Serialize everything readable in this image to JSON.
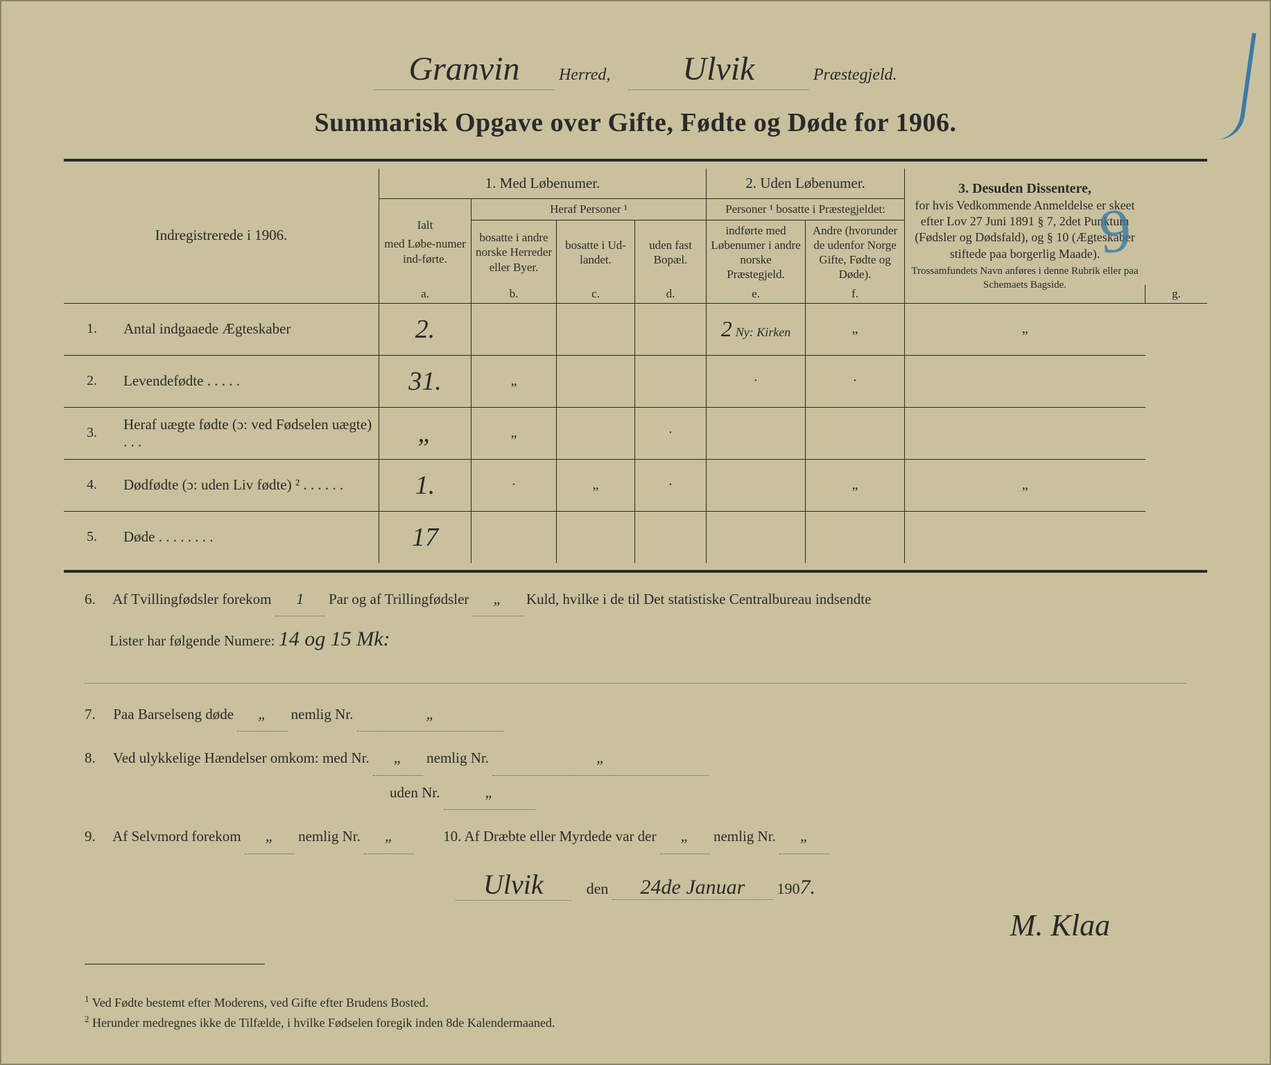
{
  "header": {
    "herred_value": "Granvin",
    "herred_label": "Herred,",
    "praestegjeld_value": "Ulvik",
    "praestegjeld_label": "Præstegjeld."
  },
  "title": "Summarisk Opgave over Gifte, Fødte og Døde for 1906.",
  "table": {
    "left_header": "Indregistrerede i 1906.",
    "section1": "1.  Med  Løbenumer.",
    "section2": "2. Uden Løbenumer.",
    "section3_title": "3.  Desuden  Dissentere,",
    "section3_body": "for hvis Vedkommende Anmeldelse er skeet efter Lov 27 Juni 1891 § 7, 2det Punktum (Fødsler og Dødsfald), og § 10 (Ægteskaber stiftede paa borgerlig Maade).",
    "section3_small": "Trossamfundets Navn anføres i denne Rubrik eller paa Schemaets Bagside.",
    "col_a_top": "Ialt",
    "col_a": "med Løbe-numer ind-førte.",
    "heraf": "Heraf Personer ¹",
    "col_b": "bosatte i andre norske Herreder eller Byer.",
    "col_c": "bosatte i Ud-landet.",
    "col_d": "uden fast Bopæl.",
    "personer2": "Personer ¹ bosatte i Præstegjeldet:",
    "col_e": "indførte med Løbenumer i andre norske Præstegjeld.",
    "col_f": "Andre (hvorunder de udenfor Norge Gifte, Fødte og Døde).",
    "letters": {
      "a": "a.",
      "b": "b.",
      "c": "c.",
      "d": "d.",
      "e": "e.",
      "f": "f.",
      "g": "g."
    },
    "rows": [
      {
        "n": "1.",
        "label": "Antal indgaaede Ægteskaber",
        "a": "2.",
        "b": "",
        "c": "",
        "d": "",
        "e": "2",
        "e_note": "Ny: Kirken",
        "f": "„",
        "g": "„"
      },
      {
        "n": "2.",
        "label": "Levendefødte   .   .   .   .   .",
        "a": "31.",
        "b": "„",
        "c": "",
        "d": "",
        "e": "·",
        "f": "·",
        "g": ""
      },
      {
        "n": "3.",
        "label": "Heraf uægte fødte (ɔ: ved Fødselen uægte)   .   .   .",
        "a": "„",
        "b": "„",
        "c": "",
        "d": "·",
        "e": "",
        "f": "",
        "g": ""
      },
      {
        "n": "4.",
        "label": "Dødfødte (ɔ: uden Liv fødte) ²   .   .   .   .   .   .",
        "a": "1.",
        "b": "·",
        "c": "„",
        "d": "·",
        "e": "",
        "f": "„",
        "g": "„"
      },
      {
        "n": "5.",
        "label": "Døde   .   .   .   .   .   .   .   .",
        "a": "17",
        "b": "",
        "c": "",
        "d": "",
        "e": "",
        "f": "",
        "g": ""
      }
    ]
  },
  "lines": {
    "l6a": "Af Tvillingfødsler forekom",
    "l6_twin": "1",
    "l6b": "Par og af Trillingfødsler",
    "l6_trip": "„",
    "l6c": "Kuld, hvilke i de til Det statistiske Centralbureau indsendte",
    "l6d": "Lister har følgende Numere:",
    "l6_list": "14 og 15 Mk:",
    "l7": "Paa Barselseng døde",
    "l7_v1": "„",
    "l7b": "nemlig Nr.",
    "l7_v2": "„",
    "l8": "Ved ulykkelige Hændelser omkom:  med Nr.",
    "l8_v1": "„",
    "l8b": "nemlig Nr.",
    "l8_v2": "„",
    "l8c": "uden Nr.",
    "l8_v3": "„",
    "l9": "Af Selvmord forekom",
    "l9_v1": "„",
    "l9b": "nemlig Nr.",
    "l9_v2": "„",
    "l10": "10.   Af Dræbte eller Myrdede var der",
    "l10_v1": "„",
    "l10b": "nemlig Nr.",
    "l10_v2": "„"
  },
  "signature": {
    "place": "Ulvik",
    "den": "den",
    "date": "24de Januar",
    "year_prefix": "190",
    "year_suffix": "7.",
    "name": "M. Klaa"
  },
  "footnotes": {
    "f1": "Ved Fødte bestemt efter Moderens, ved Gifte efter Brudens Bosted.",
    "f2": "Herunder medregnes ikke de Tilfælde, i hvilke Fødselen foregik inden 8de Kalendermaaned."
  },
  "colors": {
    "paper": "#c9c19d",
    "ink": "#2a2a2a",
    "blue": "#3a7aa8"
  }
}
